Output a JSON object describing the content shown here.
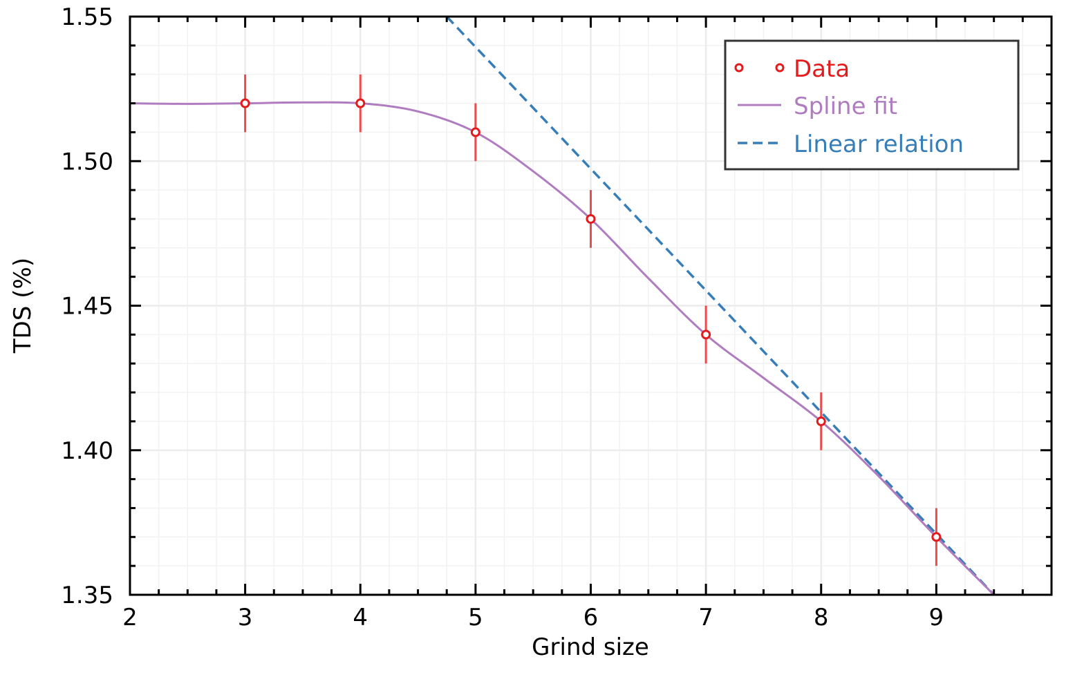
{
  "chart_data": {
    "type": "line",
    "title": "",
    "xlabel": "Grind size",
    "ylabel": "TDS (%)",
    "xlim": [
      2,
      10
    ],
    "ylim": [
      1.35,
      1.55
    ],
    "grid": true,
    "x_ticks": [
      2,
      3,
      4,
      5,
      6,
      7,
      8,
      9
    ],
    "x_tick_labels": [
      "2",
      "3",
      "4",
      "5",
      "6",
      "7",
      "8",
      "9"
    ],
    "x_minor_step": 0.25,
    "y_ticks": [
      1.35,
      1.4,
      1.45,
      1.5,
      1.55
    ],
    "y_tick_labels": [
      "1.35",
      "1.40",
      "1.45",
      "1.50",
      "1.55"
    ],
    "y_minor_step": 0.01,
    "legend_position": "top-right",
    "series": [
      {
        "name": "Data",
        "kind": "errorbar-scatter",
        "color": "#e41a1c",
        "x": [
          3,
          4,
          5,
          6,
          7,
          8,
          9
        ],
        "y": [
          1.52,
          1.52,
          1.51,
          1.48,
          1.44,
          1.41,
          1.37
        ],
        "yerr": [
          0.01,
          0.01,
          0.01,
          0.01,
          0.01,
          0.01,
          0.01
        ]
      },
      {
        "name": "Spline fit",
        "kind": "line",
        "color": "#b07cc0",
        "x": [
          2,
          2.5,
          3,
          3.5,
          4,
          4.5,
          5,
          5.5,
          6,
          6.5,
          7,
          7.5,
          8,
          8.5,
          9,
          9.5
        ],
        "y": [
          1.52,
          1.5198,
          1.52,
          1.5203,
          1.52,
          1.5172,
          1.51,
          1.4965,
          1.48,
          1.4595,
          1.44,
          1.425,
          1.41,
          1.391,
          1.37,
          1.35
        ]
      },
      {
        "name": "Linear relation",
        "kind": "dashed-line",
        "color": "#377eb8",
        "x": [
          4.75,
          9.5
        ],
        "y": [
          1.55,
          1.35
        ]
      }
    ]
  }
}
